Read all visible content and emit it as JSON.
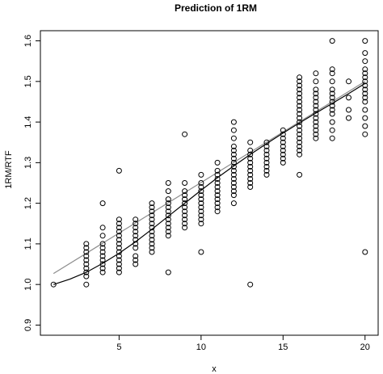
{
  "chart_data": {
    "type": "scatter",
    "title": "Prediction of 1RM",
    "xlabel": "x",
    "ylabel": "1RM/RTF",
    "xlim": [
      0.2,
      20.8
    ],
    "ylim": [
      0.875,
      1.625
    ],
    "xticks": [
      5,
      10,
      15,
      20
    ],
    "yticks": [
      0.9,
      1.0,
      1.1,
      1.2,
      1.3,
      1.4,
      1.5,
      1.6
    ],
    "grid": false,
    "legend": "none",
    "series": [
      {
        "type": "scatter",
        "marker": "open-circle",
        "points": [
          [
            1,
            1.0
          ],
          [
            3,
            1.0
          ],
          [
            3,
            1.02
          ],
          [
            3,
            1.03
          ],
          [
            3,
            1.04
          ],
          [
            3,
            1.05
          ],
          [
            3,
            1.06
          ],
          [
            3,
            1.07
          ],
          [
            3,
            1.08
          ],
          [
            3,
            1.09
          ],
          [
            3,
            1.1
          ],
          [
            4,
            1.03
          ],
          [
            4,
            1.04
          ],
          [
            4,
            1.05
          ],
          [
            4,
            1.06
          ],
          [
            4,
            1.07
          ],
          [
            4,
            1.08
          ],
          [
            4,
            1.09
          ],
          [
            4,
            1.1
          ],
          [
            4,
            1.12
          ],
          [
            4,
            1.14
          ],
          [
            4,
            1.2
          ],
          [
            5,
            1.03
          ],
          [
            5,
            1.04
          ],
          [
            5,
            1.05
          ],
          [
            5,
            1.06
          ],
          [
            5,
            1.07
          ],
          [
            5,
            1.08
          ],
          [
            5,
            1.09
          ],
          [
            5,
            1.1
          ],
          [
            5,
            1.11
          ],
          [
            5,
            1.12
          ],
          [
            5,
            1.13
          ],
          [
            5,
            1.14
          ],
          [
            5,
            1.15
          ],
          [
            5,
            1.16
          ],
          [
            5,
            1.28
          ],
          [
            6,
            1.05
          ],
          [
            6,
            1.06
          ],
          [
            6,
            1.07
          ],
          [
            6,
            1.09
          ],
          [
            6,
            1.1
          ],
          [
            6,
            1.11
          ],
          [
            6,
            1.12
          ],
          [
            6,
            1.13
          ],
          [
            6,
            1.14
          ],
          [
            6,
            1.15
          ],
          [
            6,
            1.16
          ],
          [
            7,
            1.08
          ],
          [
            7,
            1.09
          ],
          [
            7,
            1.1
          ],
          [
            7,
            1.11
          ],
          [
            7,
            1.12
          ],
          [
            7,
            1.13
          ],
          [
            7,
            1.14
          ],
          [
            7,
            1.15
          ],
          [
            7,
            1.16
          ],
          [
            7,
            1.17
          ],
          [
            7,
            1.18
          ],
          [
            7,
            1.19
          ],
          [
            7,
            1.2
          ],
          [
            8,
            1.03
          ],
          [
            8,
            1.12
          ],
          [
            8,
            1.13
          ],
          [
            8,
            1.14
          ],
          [
            8,
            1.15
          ],
          [
            8,
            1.16
          ],
          [
            8,
            1.17
          ],
          [
            8,
            1.18
          ],
          [
            8,
            1.19
          ],
          [
            8,
            1.2
          ],
          [
            8,
            1.21
          ],
          [
            8,
            1.23
          ],
          [
            8,
            1.25
          ],
          [
            9,
            1.14
          ],
          [
            9,
            1.15
          ],
          [
            9,
            1.16
          ],
          [
            9,
            1.17
          ],
          [
            9,
            1.18
          ],
          [
            9,
            1.19
          ],
          [
            9,
            1.2
          ],
          [
            9,
            1.21
          ],
          [
            9,
            1.22
          ],
          [
            9,
            1.23
          ],
          [
            9,
            1.25
          ],
          [
            9,
            1.37
          ],
          [
            10,
            1.08
          ],
          [
            10,
            1.15
          ],
          [
            10,
            1.16
          ],
          [
            10,
            1.17
          ],
          [
            10,
            1.18
          ],
          [
            10,
            1.19
          ],
          [
            10,
            1.2
          ],
          [
            10,
            1.21
          ],
          [
            10,
            1.22
          ],
          [
            10,
            1.23
          ],
          [
            10,
            1.24
          ],
          [
            10,
            1.25
          ],
          [
            10,
            1.27
          ],
          [
            11,
            1.18
          ],
          [
            11,
            1.19
          ],
          [
            11,
            1.2
          ],
          [
            11,
            1.21
          ],
          [
            11,
            1.22
          ],
          [
            11,
            1.23
          ],
          [
            11,
            1.24
          ],
          [
            11,
            1.25
          ],
          [
            11,
            1.26
          ],
          [
            11,
            1.27
          ],
          [
            11,
            1.28
          ],
          [
            11,
            1.3
          ],
          [
            12,
            1.2
          ],
          [
            12,
            1.22
          ],
          [
            12,
            1.23
          ],
          [
            12,
            1.24
          ],
          [
            12,
            1.25
          ],
          [
            12,
            1.26
          ],
          [
            12,
            1.27
          ],
          [
            12,
            1.28
          ],
          [
            12,
            1.29
          ],
          [
            12,
            1.3
          ],
          [
            12,
            1.31
          ],
          [
            12,
            1.32
          ],
          [
            12,
            1.33
          ],
          [
            12,
            1.34
          ],
          [
            12,
            1.36
          ],
          [
            12,
            1.38
          ],
          [
            12,
            1.4
          ],
          [
            13,
            1.0
          ],
          [
            13,
            1.24
          ],
          [
            13,
            1.25
          ],
          [
            13,
            1.26
          ],
          [
            13,
            1.27
          ],
          [
            13,
            1.28
          ],
          [
            13,
            1.29
          ],
          [
            13,
            1.3
          ],
          [
            13,
            1.31
          ],
          [
            13,
            1.32
          ],
          [
            13,
            1.33
          ],
          [
            13,
            1.35
          ],
          [
            14,
            1.27
          ],
          [
            14,
            1.28
          ],
          [
            14,
            1.29
          ],
          [
            14,
            1.3
          ],
          [
            14,
            1.31
          ],
          [
            14,
            1.32
          ],
          [
            14,
            1.33
          ],
          [
            14,
            1.34
          ],
          [
            14,
            1.35
          ],
          [
            15,
            1.3
          ],
          [
            15,
            1.31
          ],
          [
            15,
            1.32
          ],
          [
            15,
            1.33
          ],
          [
            15,
            1.34
          ],
          [
            15,
            1.35
          ],
          [
            15,
            1.36
          ],
          [
            15,
            1.37
          ],
          [
            15,
            1.38
          ],
          [
            16,
            1.27
          ],
          [
            16,
            1.32
          ],
          [
            16,
            1.33
          ],
          [
            16,
            1.34
          ],
          [
            16,
            1.35
          ],
          [
            16,
            1.36
          ],
          [
            16,
            1.37
          ],
          [
            16,
            1.38
          ],
          [
            16,
            1.39
          ],
          [
            16,
            1.4
          ],
          [
            16,
            1.41
          ],
          [
            16,
            1.42
          ],
          [
            16,
            1.43
          ],
          [
            16,
            1.44
          ],
          [
            16,
            1.45
          ],
          [
            16,
            1.46
          ],
          [
            16,
            1.47
          ],
          [
            16,
            1.48
          ],
          [
            16,
            1.49
          ],
          [
            16,
            1.5
          ],
          [
            16,
            1.51
          ],
          [
            17,
            1.36
          ],
          [
            17,
            1.37
          ],
          [
            17,
            1.38
          ],
          [
            17,
            1.39
          ],
          [
            17,
            1.4
          ],
          [
            17,
            1.41
          ],
          [
            17,
            1.42
          ],
          [
            17,
            1.43
          ],
          [
            17,
            1.44
          ],
          [
            17,
            1.45
          ],
          [
            17,
            1.46
          ],
          [
            17,
            1.47
          ],
          [
            17,
            1.48
          ],
          [
            17,
            1.5
          ],
          [
            17,
            1.52
          ],
          [
            18,
            1.36
          ],
          [
            18,
            1.38
          ],
          [
            18,
            1.4
          ],
          [
            18,
            1.42
          ],
          [
            18,
            1.43
          ],
          [
            18,
            1.44
          ],
          [
            18,
            1.45
          ],
          [
            18,
            1.46
          ],
          [
            18,
            1.47
          ],
          [
            18,
            1.48
          ],
          [
            18,
            1.5
          ],
          [
            18,
            1.52
          ],
          [
            18,
            1.53
          ],
          [
            18,
            1.6
          ],
          [
            19,
            1.41
          ],
          [
            19,
            1.43
          ],
          [
            19,
            1.46
          ],
          [
            19,
            1.5
          ],
          [
            20,
            1.08
          ],
          [
            20,
            1.37
          ],
          [
            20,
            1.39
          ],
          [
            20,
            1.41
          ],
          [
            20,
            1.43
          ],
          [
            20,
            1.45
          ],
          [
            20,
            1.46
          ],
          [
            20,
            1.47
          ],
          [
            20,
            1.48
          ],
          [
            20,
            1.49
          ],
          [
            20,
            1.5
          ],
          [
            20,
            1.51
          ],
          [
            20,
            1.52
          ],
          [
            20,
            1.53
          ],
          [
            20,
            1.55
          ],
          [
            20,
            1.57
          ],
          [
            20,
            1.6
          ]
        ]
      },
      {
        "type": "line",
        "color": "#000000",
        "points": [
          [
            1,
            1.0
          ],
          [
            2,
            1.013
          ],
          [
            3,
            1.03
          ],
          [
            4,
            1.052
          ],
          [
            5,
            1.077
          ],
          [
            6,
            1.105
          ],
          [
            7,
            1.136
          ],
          [
            8,
            1.168
          ],
          [
            9,
            1.2
          ],
          [
            10,
            1.232
          ],
          [
            11,
            1.263
          ],
          [
            12,
            1.292
          ],
          [
            13,
            1.32
          ],
          [
            14,
            1.347
          ],
          [
            15,
            1.373
          ],
          [
            16,
            1.398
          ],
          [
            17,
            1.422
          ],
          [
            18,
            1.446
          ],
          [
            19,
            1.47
          ],
          [
            20,
            1.495
          ]
        ]
      },
      {
        "type": "line",
        "color": "#8c8c8c",
        "points": [
          [
            1,
            1.027
          ],
          [
            20,
            1.5
          ]
        ]
      }
    ]
  }
}
